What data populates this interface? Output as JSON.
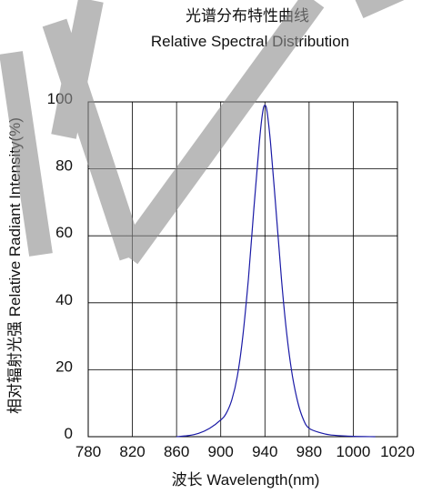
{
  "chart_data": {
    "type": "line",
    "title": "光谱分布特性曲线",
    "subtitle": "Relative Spectral Distribution",
    "xlabel": "波长  Wavelength(nm)",
    "ylabel": "相对辐射光强  Relative  Radiant Intensity(%)",
    "x_tick_labels": [
      "780",
      "820",
      "860",
      "900",
      "940",
      "980",
      "1000",
      "1020"
    ],
    "y_ticks": [
      0,
      20,
      40,
      60,
      80,
      100
    ],
    "ylim": [
      0,
      100
    ],
    "grid": true,
    "series": [
      {
        "color": "#1a1aa6",
        "points": [
          [
            860,
            0
          ],
          [
            870,
            0.3
          ],
          [
            880,
            1
          ],
          [
            890,
            2.5
          ],
          [
            900,
            5
          ],
          [
            905,
            7
          ],
          [
            910,
            11
          ],
          [
            915,
            18
          ],
          [
            920,
            30
          ],
          [
            925,
            47
          ],
          [
            930,
            68
          ],
          [
            935,
            88
          ],
          [
            938,
            97
          ],
          [
            940,
            99
          ],
          [
            942,
            97
          ],
          [
            945,
            88
          ],
          [
            950,
            68
          ],
          [
            955,
            47
          ],
          [
            960,
            30
          ],
          [
            965,
            18
          ],
          [
            970,
            10
          ],
          [
            975,
            5
          ],
          [
            980,
            2.5
          ],
          [
            985,
            1.2
          ],
          [
            990,
            0.5
          ],
          [
            1000,
            0.1
          ],
          [
            1010,
            0
          ]
        ]
      }
    ],
    "watermark_text": "NLED"
  }
}
